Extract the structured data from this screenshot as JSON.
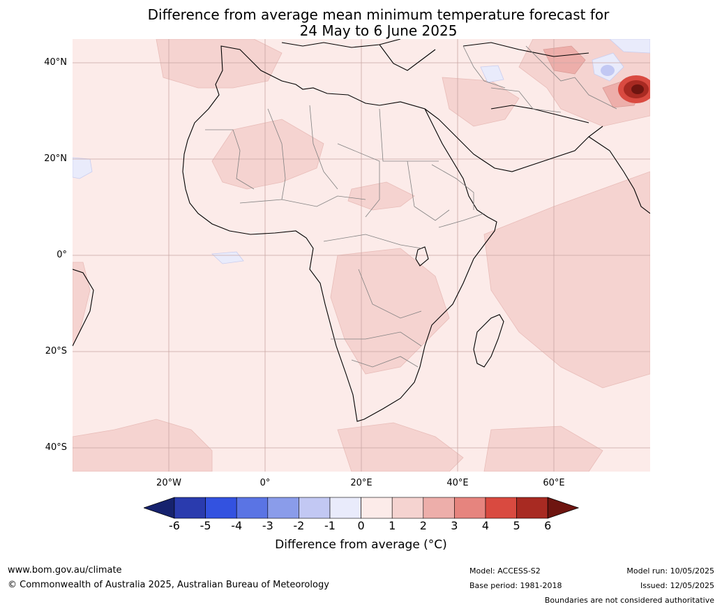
{
  "title_line1": "Difference from average mean minimum temperature forecast for",
  "title_line2": "24 May to 6 June 2025",
  "lat_labels": [
    "40°N",
    "20°N",
    "0°",
    "20°S",
    "40°S"
  ],
  "lon_labels": [
    "20°W",
    "0°",
    "20°E",
    "40°E",
    "60°E"
  ],
  "colorbar": {
    "ticks": [
      "-6",
      "-5",
      "-4",
      "-3",
      "-2",
      "-1",
      "0",
      "1",
      "2",
      "3",
      "4",
      "5",
      "6"
    ],
    "colors": [
      "#16226e",
      "#2a3bae",
      "#3352e0",
      "#5a74e4",
      "#8a9cea",
      "#c2c8f3",
      "#e9ebfb",
      "#fcebe9",
      "#f5d3d0",
      "#edaeaa",
      "#e6847e",
      "#d94a40",
      "#a82a22",
      "#6e1510"
    ],
    "label": "Difference from average (°C)"
  },
  "footer": {
    "url": "www.bom.gov.au/climate",
    "copyright": "© Commonwealth of Australia 2025, Australian Bureau of Meteorology",
    "model": "Model: ACCESS-S2",
    "base_period": "Base period: 1981-2018",
    "model_run": "Model run: 10/05/2025",
    "issued": "Issued: 12/05/2025",
    "boundaries": "Boundaries are not considered authoritative"
  }
}
